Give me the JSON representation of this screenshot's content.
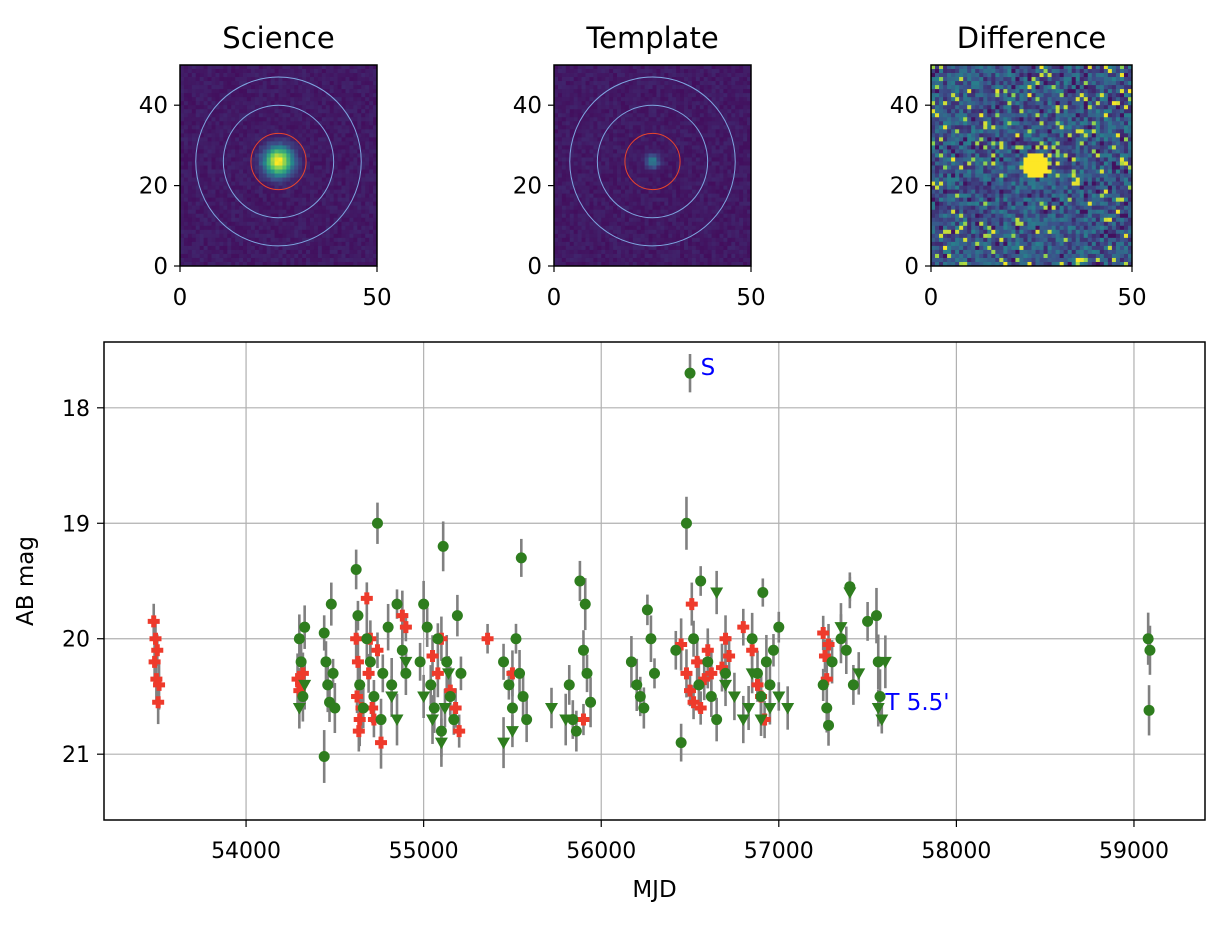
{
  "chart_data": [
    {
      "type": "heatmap",
      "title": "Science",
      "xticks": [
        "0",
        "50"
      ],
      "yticks": [
        "0",
        "20",
        "40"
      ],
      "xlim": [
        0,
        50
      ],
      "ylim": [
        0,
        50
      ],
      "colormap": "viridis",
      "source": {
        "x": 25,
        "y": 26,
        "radius": 2.5,
        "brightness": "moderate"
      },
      "aperture_radii": [
        7,
        14,
        21
      ],
      "aperture_colors": [
        "#e8452c",
        "#7ea6e0",
        "#7ea6e0"
      ]
    },
    {
      "type": "heatmap",
      "title": "Template",
      "xticks": [
        "0",
        "50"
      ],
      "yticks": [
        "0",
        "20",
        "40"
      ],
      "xlim": [
        0,
        50
      ],
      "ylim": [
        0,
        50
      ],
      "colormap": "viridis",
      "source": {
        "x": 25,
        "y": 26,
        "radius": 1.2,
        "brightness": "faint"
      },
      "aperture_radii": [
        7,
        14,
        21
      ],
      "aperture_colors": [
        "#e8452c",
        "#7ea6e0",
        "#7ea6e0"
      ]
    },
    {
      "type": "heatmap",
      "title": "Difference",
      "xticks": [
        "0",
        "50"
      ],
      "yticks": [
        "0",
        "20",
        "40"
      ],
      "xlim": [
        0,
        50
      ],
      "ylim": [
        0,
        50
      ],
      "colormap": "viridis",
      "source": {
        "x": 26,
        "y": 25,
        "radius": 3,
        "brightness": "saturated"
      }
    },
    {
      "type": "scatter",
      "xlabel": "MJD",
      "ylabel": "AB mag",
      "xlim": [
        53200,
        59400
      ],
      "ylim": [
        21.57,
        17.43
      ],
      "y_inverted": true,
      "grid": true,
      "xticks": [
        54000,
        55000,
        56000,
        57000,
        58000,
        59000
      ],
      "yticks": [
        18,
        19,
        20,
        21
      ],
      "annotations": [
        {
          "text": "S",
          "x": 56560,
          "y": 17.7,
          "color": "#0000ff"
        },
        {
          "text": "T 5.5'",
          "x": 57600,
          "y": 20.6,
          "color": "#0000ff"
        }
      ],
      "series": [
        {
          "marker": "plus",
          "color": "#ee3a2b",
          "errorbar_color": "#808080",
          "points": [
            [
              53480,
              19.85
            ],
            [
              53490,
              20.0
            ],
            [
              53500,
              20.1
            ],
            [
              53485,
              20.2
            ],
            [
              53495,
              20.35
            ],
            [
              53510,
              20.4
            ],
            [
              53505,
              20.55
            ],
            [
              54290,
              20.35
            ],
            [
              54300,
              20.45
            ],
            [
              54310,
              20.4
            ],
            [
              54320,
              20.3
            ],
            [
              54620,
              20.0
            ],
            [
              54630,
              20.2
            ],
            [
              54625,
              20.5
            ],
            [
              54640,
              20.7
            ],
            [
              54635,
              20.8
            ],
            [
              54650,
              20.6
            ],
            [
              54680,
              19.65
            ],
            [
              54700,
              20.0
            ],
            [
              54690,
              20.3
            ],
            [
              54710,
              20.6
            ],
            [
              54720,
              20.7
            ],
            [
              54740,
              20.1
            ],
            [
              54760,
              20.9
            ],
            [
              54880,
              19.8
            ],
            [
              54900,
              19.9
            ],
            [
              55050,
              20.15
            ],
            [
              55080,
              20.3
            ],
            [
              55100,
              20.0
            ],
            [
              55150,
              20.45
            ],
            [
              55180,
              20.6
            ],
            [
              55200,
              20.8
            ],
            [
              55360,
              20.0
            ],
            [
              55500,
              20.3
            ],
            [
              55900,
              20.7
            ],
            [
              56450,
              20.05
            ],
            [
              56480,
              20.3
            ],
            [
              56500,
              20.45
            ],
            [
              56510,
              19.7
            ],
            [
              56520,
              20.55
            ],
            [
              56540,
              20.2
            ],
            [
              56560,
              20.6
            ],
            [
              56580,
              20.35
            ],
            [
              56600,
              20.1
            ],
            [
              56620,
              20.3
            ],
            [
              56680,
              20.25
            ],
            [
              56700,
              20.0
            ],
            [
              56720,
              20.15
            ],
            [
              56800,
              19.9
            ],
            [
              56850,
              20.1
            ],
            [
              56880,
              20.4
            ],
            [
              56900,
              20.5
            ],
            [
              56920,
              20.7
            ],
            [
              57250,
              19.95
            ],
            [
              57260,
              20.15
            ],
            [
              57270,
              20.35
            ],
            [
              57280,
              20.05
            ]
          ]
        },
        {
          "marker": "circle",
          "color": "#2e7d1e",
          "errorbar_color": "#808080",
          "points": [
            [
              54300,
              20.0
            ],
            [
              54310,
              20.2
            ],
            [
              54320,
              20.5
            ],
            [
              54330,
              19.9
            ],
            [
              54440,
              19.95
            ],
            [
              54450,
              20.2
            ],
            [
              54460,
              20.4
            ],
            [
              54470,
              20.55
            ],
            [
              54480,
              19.7
            ],
            [
              54490,
              20.3
            ],
            [
              54440,
              21.02
            ],
            [
              54500,
              20.6
            ],
            [
              54620,
              19.4
            ],
            [
              54630,
              19.8
            ],
            [
              54640,
              20.4
            ],
            [
              54660,
              20.6
            ],
            [
              54680,
              20.0
            ],
            [
              54700,
              20.2
            ],
            [
              54720,
              20.5
            ],
            [
              54740,
              19.0
            ],
            [
              54760,
              20.7
            ],
            [
              54770,
              20.3
            ],
            [
              54800,
              19.9
            ],
            [
              54820,
              20.4
            ],
            [
              54850,
              19.7
            ],
            [
              54880,
              20.1
            ],
            [
              54900,
              20.3
            ],
            [
              54980,
              20.2
            ],
            [
              55000,
              19.7
            ],
            [
              55020,
              19.9
            ],
            [
              55040,
              20.4
            ],
            [
              55060,
              20.6
            ],
            [
              55080,
              20.0
            ],
            [
              55100,
              20.8
            ],
            [
              55110,
              19.2
            ],
            [
              55130,
              20.2
            ],
            [
              55150,
              20.5
            ],
            [
              55170,
              20.7
            ],
            [
              55190,
              19.8
            ],
            [
              55210,
              20.3
            ],
            [
              55450,
              20.2
            ],
            [
              55480,
              20.4
            ],
            [
              55500,
              20.6
            ],
            [
              55520,
              20.0
            ],
            [
              55540,
              20.3
            ],
            [
              55550,
              19.3
            ],
            [
              55560,
              20.5
            ],
            [
              55580,
              20.7
            ],
            [
              55820,
              20.4
            ],
            [
              55840,
              20.7
            ],
            [
              55860,
              20.8
            ],
            [
              55880,
              19.5
            ],
            [
              55900,
              20.1
            ],
            [
              55910,
              19.7
            ],
            [
              55920,
              20.3
            ],
            [
              55940,
              20.55
            ],
            [
              56170,
              20.2
            ],
            [
              56200,
              20.4
            ],
            [
              56220,
              20.5
            ],
            [
              56240,
              20.6
            ],
            [
              56260,
              19.75
            ],
            [
              56280,
              20.0
            ],
            [
              56300,
              20.3
            ],
            [
              56420,
              20.1
            ],
            [
              56450,
              20.9
            ],
            [
              56480,
              19.0
            ],
            [
              56500,
              17.7
            ],
            [
              56520,
              20.0
            ],
            [
              56550,
              20.4
            ],
            [
              56560,
              19.5
            ],
            [
              56600,
              20.2
            ],
            [
              56620,
              20.5
            ],
            [
              56650,
              20.7
            ],
            [
              56700,
              20.3
            ],
            [
              56850,
              20.0
            ],
            [
              56880,
              20.3
            ],
            [
              56900,
              20.5
            ],
            [
              56910,
              19.6
            ],
            [
              56930,
              20.2
            ],
            [
              56950,
              20.4
            ],
            [
              56970,
              20.1
            ],
            [
              57000,
              19.9
            ],
            [
              57250,
              20.4
            ],
            [
              57270,
              20.6
            ],
            [
              57280,
              20.75
            ],
            [
              57300,
              20.2
            ],
            [
              57350,
              20.0
            ],
            [
              57380,
              20.1
            ],
            [
              57400,
              19.55
            ],
            [
              57420,
              20.4
            ],
            [
              57500,
              19.85
            ],
            [
              57550,
              19.8
            ],
            [
              57560,
              20.2
            ],
            [
              57570,
              20.5
            ],
            [
              59080,
              20.0
            ],
            [
              59090,
              20.1
            ],
            [
              59085,
              20.62
            ]
          ]
        },
        {
          "marker": "triangle-down",
          "color": "#2e7d1e",
          "errorbar_color": "#808080",
          "points": [
            [
              54300,
              20.6
            ],
            [
              54330,
              20.4
            ],
            [
              54820,
              20.5
            ],
            [
              54850,
              20.7
            ],
            [
              54900,
              20.2
            ],
            [
              55100,
              20.9
            ],
            [
              55120,
              20.6
            ],
            [
              55140,
              20.3
            ],
            [
              55000,
              20.5
            ],
            [
              55050,
              20.7
            ],
            [
              55450,
              20.9
            ],
            [
              55500,
              20.8
            ],
            [
              55720,
              20.6
            ],
            [
              55800,
              20.7
            ],
            [
              56650,
              19.6
            ],
            [
              56700,
              20.4
            ],
            [
              56750,
              20.5
            ],
            [
              56800,
              20.7
            ],
            [
              56830,
              20.6
            ],
            [
              56850,
              20.3
            ],
            [
              56900,
              20.7
            ],
            [
              56950,
              20.6
            ],
            [
              57000,
              20.5
            ],
            [
              57050,
              20.6
            ],
            [
              57350,
              19.9
            ],
            [
              57400,
              19.6
            ],
            [
              57450,
              20.3
            ],
            [
              57560,
              20.6
            ],
            [
              57580,
              20.7
            ],
            [
              57600,
              20.2
            ]
          ]
        }
      ]
    }
  ]
}
